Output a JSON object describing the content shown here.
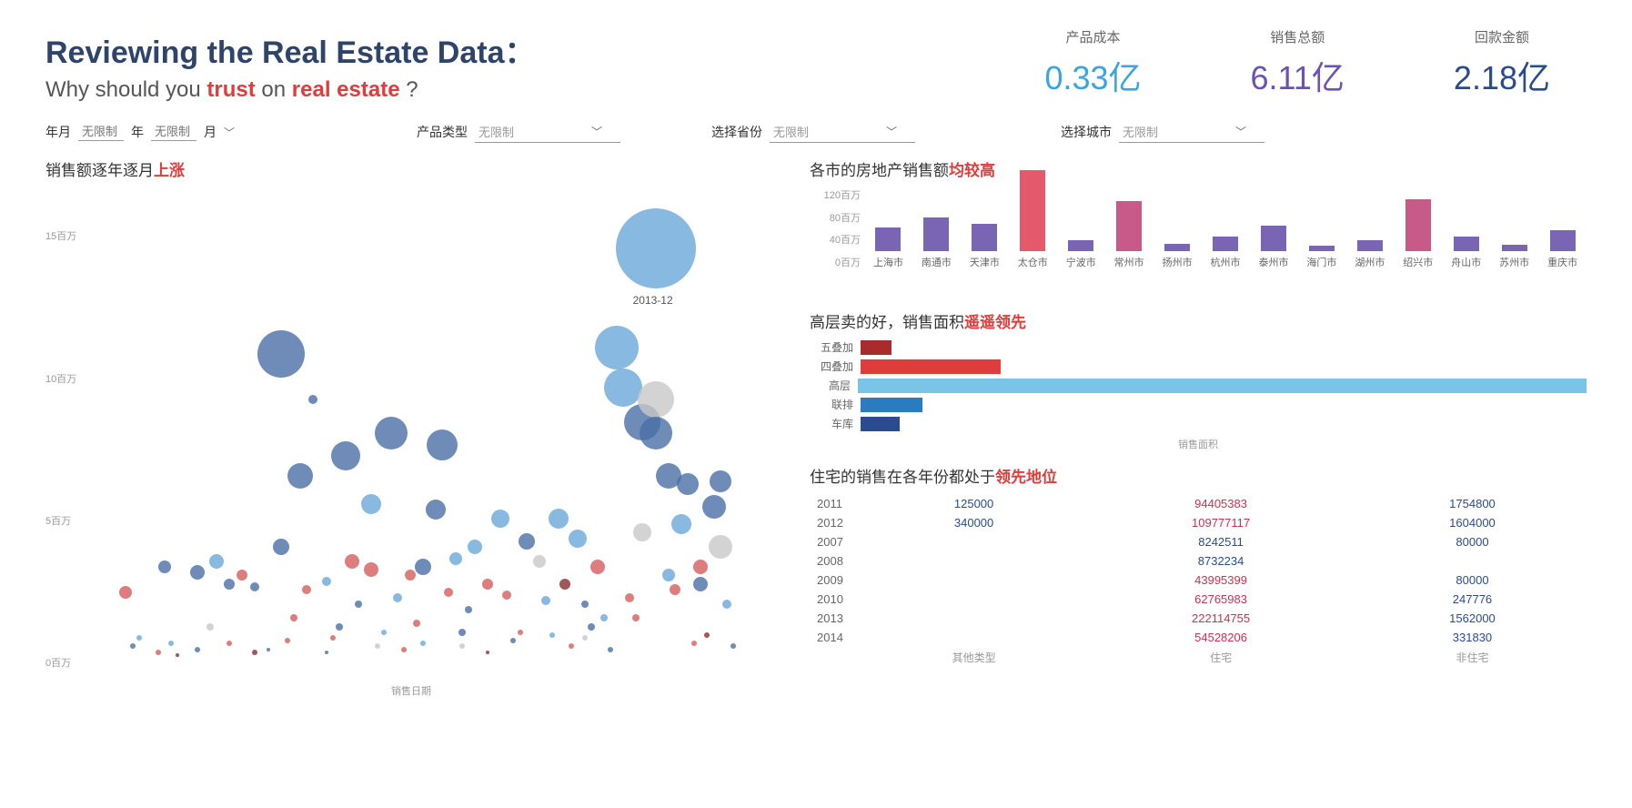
{
  "header": {
    "title": "Reviewing the Real Estate Data：",
    "subtitle_pre": "Why should you ",
    "subtitle_hl1": "trust",
    "subtitle_mid": " on ",
    "subtitle_hl2": "real estate",
    "subtitle_post": " ?"
  },
  "kpis": [
    {
      "label": "产品成本",
      "value": "0.33亿",
      "class": "kpi-blue"
    },
    {
      "label": "销售总额",
      "value": "6.11亿",
      "class": "kpi-purple"
    },
    {
      "label": "回款金额",
      "value": "2.18亿",
      "class": "kpi-darkblue"
    }
  ],
  "filters": {
    "ym_label": "年月",
    "year_ph": "无限制",
    "year_suffix": "年",
    "month_ph": "无限制",
    "month_suffix": "月",
    "prodtype_label": "产品类型",
    "prodtype_value": "无限制",
    "province_label": "选择省份",
    "province_value": "无限制",
    "city_label": "选择城市",
    "city_value": "无限制"
  },
  "scatter": {
    "title_pre": "销售额逐年逐月",
    "title_hl": "上涨",
    "xlabel": "销售日期",
    "yticks": [
      "0百万",
      "5百万",
      "10百万",
      "15百万"
    ],
    "ymax": 16,
    "annotate": "2013-12",
    "annotate_x": 0.86,
    "annotate_y": 14.5,
    "annotate_r": 44,
    "colors": {
      "blue": "#4a6fa5",
      "lightblue": "#6aa8d8",
      "red": "#d45c5c",
      "darkred": "#8b2c2c",
      "grey": "#c8c8c8"
    },
    "points": [
      {
        "x": 0.04,
        "y": 2.4,
        "r": 7,
        "c": "red"
      },
      {
        "x": 0.05,
        "y": 0.5,
        "r": 3,
        "c": "blue"
      },
      {
        "x": 0.06,
        "y": 0.8,
        "r": 3,
        "c": "lightblue"
      },
      {
        "x": 0.09,
        "y": 0.3,
        "r": 3,
        "c": "red"
      },
      {
        "x": 0.1,
        "y": 3.3,
        "r": 7,
        "c": "blue"
      },
      {
        "x": 0.11,
        "y": 0.6,
        "r": 3,
        "c": "lightblue"
      },
      {
        "x": 0.15,
        "y": 3.1,
        "r": 8,
        "c": "blue"
      },
      {
        "x": 0.15,
        "y": 0.4,
        "r": 3,
        "c": "blue"
      },
      {
        "x": 0.17,
        "y": 1.2,
        "r": 4,
        "c": "grey"
      },
      {
        "x": 0.18,
        "y": 3.5,
        "r": 8,
        "c": "lightblue"
      },
      {
        "x": 0.2,
        "y": 2.7,
        "r": 6,
        "c": "blue"
      },
      {
        "x": 0.2,
        "y": 0.6,
        "r": 3,
        "c": "red"
      },
      {
        "x": 0.22,
        "y": 3.0,
        "r": 6,
        "c": "red"
      },
      {
        "x": 0.24,
        "y": 2.6,
        "r": 5,
        "c": "blue"
      },
      {
        "x": 0.24,
        "y": 0.3,
        "r": 3,
        "c": "darkred"
      },
      {
        "x": 0.28,
        "y": 10.8,
        "r": 26,
        "c": "blue"
      },
      {
        "x": 0.28,
        "y": 4.0,
        "r": 9,
        "c": "blue"
      },
      {
        "x": 0.29,
        "y": 0.7,
        "r": 3,
        "c": "red"
      },
      {
        "x": 0.31,
        "y": 6.5,
        "r": 14,
        "c": "blue"
      },
      {
        "x": 0.32,
        "y": 2.5,
        "r": 5,
        "c": "red"
      },
      {
        "x": 0.33,
        "y": 9.2,
        "r": 5,
        "c": "blue"
      },
      {
        "x": 0.35,
        "y": 2.8,
        "r": 5,
        "c": "lightblue"
      },
      {
        "x": 0.35,
        "y": 0.3,
        "r": 2,
        "c": "blue"
      },
      {
        "x": 0.36,
        "y": 0.8,
        "r": 3,
        "c": "red"
      },
      {
        "x": 0.38,
        "y": 7.2,
        "r": 16,
        "c": "blue"
      },
      {
        "x": 0.39,
        "y": 3.5,
        "r": 8,
        "c": "red"
      },
      {
        "x": 0.4,
        "y": 2.0,
        "r": 4,
        "c": "blue"
      },
      {
        "x": 0.42,
        "y": 3.2,
        "r": 8,
        "c": "red"
      },
      {
        "x": 0.42,
        "y": 5.5,
        "r": 11,
        "c": "lightblue"
      },
      {
        "x": 0.43,
        "y": 0.5,
        "r": 3,
        "c": "grey"
      },
      {
        "x": 0.45,
        "y": 8.0,
        "r": 18,
        "c": "blue"
      },
      {
        "x": 0.46,
        "y": 2.2,
        "r": 5,
        "c": "lightblue"
      },
      {
        "x": 0.47,
        "y": 0.4,
        "r": 3,
        "c": "red"
      },
      {
        "x": 0.48,
        "y": 3.0,
        "r": 6,
        "c": "red"
      },
      {
        "x": 0.5,
        "y": 3.3,
        "r": 9,
        "c": "blue"
      },
      {
        "x": 0.5,
        "y": 0.6,
        "r": 3,
        "c": "lightblue"
      },
      {
        "x": 0.52,
        "y": 5.3,
        "r": 11,
        "c": "blue"
      },
      {
        "x": 0.53,
        "y": 7.6,
        "r": 17,
        "c": "blue"
      },
      {
        "x": 0.54,
        "y": 2.4,
        "r": 5,
        "c": "red"
      },
      {
        "x": 0.55,
        "y": 3.6,
        "r": 7,
        "c": "lightblue"
      },
      {
        "x": 0.56,
        "y": 0.5,
        "r": 3,
        "c": "grey"
      },
      {
        "x": 0.56,
        "y": 1.0,
        "r": 4,
        "c": "blue"
      },
      {
        "x": 0.58,
        "y": 4.0,
        "r": 8,
        "c": "lightblue"
      },
      {
        "x": 0.6,
        "y": 2.7,
        "r": 6,
        "c": "red"
      },
      {
        "x": 0.6,
        "y": 0.3,
        "r": 2,
        "c": "darkred"
      },
      {
        "x": 0.62,
        "y": 5.0,
        "r": 10,
        "c": "lightblue"
      },
      {
        "x": 0.63,
        "y": 2.3,
        "r": 5,
        "c": "red"
      },
      {
        "x": 0.64,
        "y": 0.7,
        "r": 3,
        "c": "blue"
      },
      {
        "x": 0.66,
        "y": 4.2,
        "r": 9,
        "c": "blue"
      },
      {
        "x": 0.68,
        "y": 3.5,
        "r": 7,
        "c": "grey"
      },
      {
        "x": 0.69,
        "y": 2.1,
        "r": 5,
        "c": "lightblue"
      },
      {
        "x": 0.71,
        "y": 5.0,
        "r": 11,
        "c": "lightblue"
      },
      {
        "x": 0.72,
        "y": 2.7,
        "r": 6,
        "c": "darkred"
      },
      {
        "x": 0.73,
        "y": 0.5,
        "r": 3,
        "c": "red"
      },
      {
        "x": 0.74,
        "y": 4.3,
        "r": 10,
        "c": "lightblue"
      },
      {
        "x": 0.75,
        "y": 2.0,
        "r": 4,
        "c": "blue"
      },
      {
        "x": 0.75,
        "y": 0.8,
        "r": 3,
        "c": "grey"
      },
      {
        "x": 0.77,
        "y": 3.3,
        "r": 8,
        "c": "red"
      },
      {
        "x": 0.78,
        "y": 1.5,
        "r": 4,
        "c": "lightblue"
      },
      {
        "x": 0.79,
        "y": 0.4,
        "r": 3,
        "c": "blue"
      },
      {
        "x": 0.8,
        "y": 11.0,
        "r": 24,
        "c": "lightblue"
      },
      {
        "x": 0.81,
        "y": 9.6,
        "r": 21,
        "c": "lightblue"
      },
      {
        "x": 0.82,
        "y": 2.2,
        "r": 5,
        "c": "red"
      },
      {
        "x": 0.84,
        "y": 8.4,
        "r": 20,
        "c": "blue"
      },
      {
        "x": 0.84,
        "y": 4.5,
        "r": 10,
        "c": "grey"
      },
      {
        "x": 0.86,
        "y": 9.2,
        "r": 20,
        "c": "grey"
      },
      {
        "x": 0.86,
        "y": 14.5,
        "r": 44,
        "c": "lightblue"
      },
      {
        "x": 0.86,
        "y": 8.0,
        "r": 18,
        "c": "blue"
      },
      {
        "x": 0.88,
        "y": 6.5,
        "r": 14,
        "c": "blue"
      },
      {
        "x": 0.88,
        "y": 3.0,
        "r": 7,
        "c": "lightblue"
      },
      {
        "x": 0.89,
        "y": 2.5,
        "r": 6,
        "c": "red"
      },
      {
        "x": 0.9,
        "y": 4.8,
        "r": 11,
        "c": "lightblue"
      },
      {
        "x": 0.91,
        "y": 6.2,
        "r": 12,
        "c": "blue"
      },
      {
        "x": 0.92,
        "y": 0.6,
        "r": 3,
        "c": "red"
      },
      {
        "x": 0.93,
        "y": 3.3,
        "r": 8,
        "c": "red"
      },
      {
        "x": 0.93,
        "y": 2.7,
        "r": 8,
        "c": "blue"
      },
      {
        "x": 0.95,
        "y": 5.4,
        "r": 13,
        "c": "blue"
      },
      {
        "x": 0.96,
        "y": 6.3,
        "r": 12,
        "c": "blue"
      },
      {
        "x": 0.96,
        "y": 4.0,
        "r": 13,
        "c": "grey"
      },
      {
        "x": 0.97,
        "y": 2.0,
        "r": 5,
        "c": "lightblue"
      },
      {
        "x": 0.98,
        "y": 0.5,
        "r": 3,
        "c": "blue"
      },
      {
        "x": 0.12,
        "y": 0.2,
        "r": 2,
        "c": "darkred"
      },
      {
        "x": 0.26,
        "y": 0.4,
        "r": 2,
        "c": "blue"
      },
      {
        "x": 0.3,
        "y": 1.5,
        "r": 4,
        "c": "red"
      },
      {
        "x": 0.37,
        "y": 1.2,
        "r": 4,
        "c": "blue"
      },
      {
        "x": 0.44,
        "y": 1.0,
        "r": 3,
        "c": "lightblue"
      },
      {
        "x": 0.49,
        "y": 1.3,
        "r": 4,
        "c": "red"
      },
      {
        "x": 0.57,
        "y": 1.8,
        "r": 4,
        "c": "blue"
      },
      {
        "x": 0.65,
        "y": 1.0,
        "r": 3,
        "c": "red"
      },
      {
        "x": 0.7,
        "y": 0.9,
        "r": 3,
        "c": "lightblue"
      },
      {
        "x": 0.76,
        "y": 1.2,
        "r": 4,
        "c": "blue"
      },
      {
        "x": 0.83,
        "y": 1.5,
        "r": 4,
        "c": "red"
      },
      {
        "x": 0.94,
        "y": 0.9,
        "r": 3,
        "c": "darkred"
      }
    ]
  },
  "citybar": {
    "title_pre": "各市的房地产销售额",
    "title_hl": "均较高",
    "yticks": [
      "120百万",
      "80百万",
      "40百万",
      "0百万"
    ],
    "ymax": 130,
    "cities": [
      "上海市",
      "南通市",
      "天津市",
      "太仓市",
      "宁波市",
      "常州市",
      "扬州市",
      "杭州市",
      "泰州市",
      "海门市",
      "湖州市",
      "绍兴市",
      "舟山市",
      "苏州市",
      "重庆市"
    ],
    "values": [
      38,
      54,
      44,
      128,
      18,
      80,
      12,
      23,
      40,
      8,
      18,
      83,
      23,
      10,
      33
    ],
    "colors": [
      "#7a65b5",
      "#7a65b5",
      "#7a65b5",
      "#e45a6a",
      "#7a65b5",
      "#c85a8a",
      "#7a65b5",
      "#7a65b5",
      "#7a65b5",
      "#7a65b5",
      "#7a65b5",
      "#c85a8a",
      "#7a65b5",
      "#7a65b5",
      "#7a65b5"
    ]
  },
  "hbar": {
    "title_pre": "高层卖的好，销售面积",
    "title_hl": "遥遥领先",
    "xlabel": "销售面积",
    "rows": [
      {
        "label": "五叠加",
        "value": 4,
        "color": "#a82c2c"
      },
      {
        "label": "四叠加",
        "value": 18,
        "color": "#e03c3c"
      },
      {
        "label": "高层",
        "value": 100,
        "color": "#7ac4e8"
      },
      {
        "label": "联排",
        "value": 8,
        "color": "#2a7bc0"
      },
      {
        "label": "车库",
        "value": 5,
        "color": "#2a4b8d"
      }
    ]
  },
  "table": {
    "title_pre": "住宅的销售在各年份都处于",
    "title_hl": "领先地位",
    "columns": [
      "",
      "其他类型",
      "住宅",
      "非住宅"
    ],
    "rows": [
      {
        "yr": "2011",
        "c1": "125000",
        "c1c": "c-blue",
        "c2": "94405383",
        "c2c": "c-red",
        "c3": "1754800",
        "c3c": "c-blue"
      },
      {
        "yr": "2012",
        "c1": "340000",
        "c1c": "c-blue",
        "c2": "109777117",
        "c2c": "c-red",
        "c3": "1604000",
        "c3c": "c-blue"
      },
      {
        "yr": "2007",
        "c1": "",
        "c1c": "",
        "c2": "8242511",
        "c2c": "c-blue",
        "c3": "80000",
        "c3c": "c-blue"
      },
      {
        "yr": "2008",
        "c1": "",
        "c1c": "",
        "c2": "8732234",
        "c2c": "c-blue",
        "c3": "",
        "c3c": ""
      },
      {
        "yr": "2009",
        "c1": "",
        "c1c": "",
        "c2": "43995399",
        "c2c": "c-red",
        "c3": "80000",
        "c3c": "c-blue"
      },
      {
        "yr": "2010",
        "c1": "",
        "c1c": "",
        "c2": "62765983",
        "c2c": "c-red",
        "c3": "247776",
        "c3c": "c-blue"
      },
      {
        "yr": "2013",
        "c1": "",
        "c1c": "",
        "c2": "222114755",
        "c2c": "c-red",
        "c3": "1562000",
        "c3c": "c-blue"
      },
      {
        "yr": "2014",
        "c1": "",
        "c1c": "",
        "c2": "54528206",
        "c2c": "c-red",
        "c3": "331830",
        "c3c": "c-blue"
      }
    ]
  }
}
